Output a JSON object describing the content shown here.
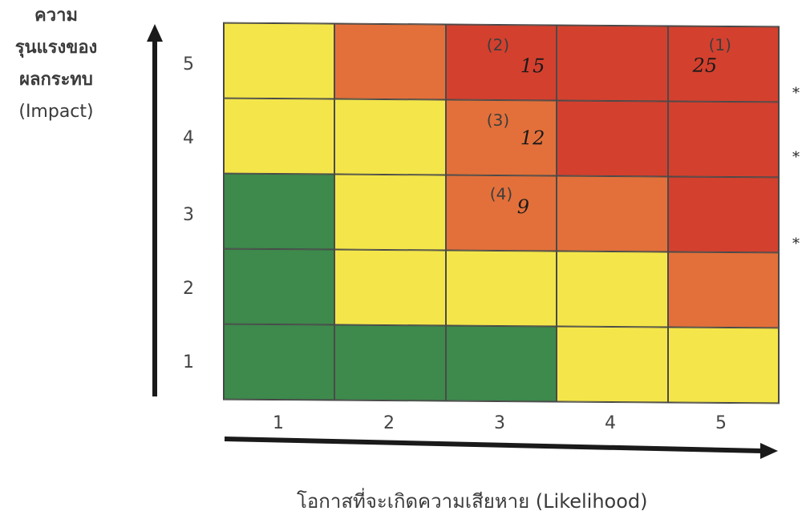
{
  "y_axis_label": {
    "line1": "ความ",
    "line2": "รุนแรงของ",
    "line3": "ผลกระทบ",
    "line4": "(Impact)"
  },
  "x_axis_label": "โอกาสที่จะเกิดความเสียหาย (Likelihood)",
  "y_ticks": [
    "5",
    "4",
    "3",
    "2",
    "1"
  ],
  "x_ticks": [
    "1",
    "2",
    "3",
    "4",
    "5"
  ],
  "colors": {
    "green": "#3d8a4c",
    "yellow": "#f4e64a",
    "orange": "#e3703a",
    "red": "#d4402e"
  },
  "matrix_rows": [
    {
      "impact": "5",
      "cells": [
        "yellow",
        "orange",
        "red",
        "red",
        "red"
      ]
    },
    {
      "impact": "4",
      "cells": [
        "yellow",
        "yellow",
        "orange",
        "red",
        "red"
      ]
    },
    {
      "impact": "3",
      "cells": [
        "green",
        "yellow",
        "orange",
        "orange",
        "red"
      ]
    },
    {
      "impact": "2",
      "cells": [
        "green",
        "yellow",
        "yellow",
        "yellow",
        "orange"
      ]
    },
    {
      "impact": "1",
      "cells": [
        "green",
        "green",
        "green",
        "yellow",
        "yellow"
      ]
    }
  ],
  "annotations": {
    "a1": {
      "label": "(1)",
      "handwritten": "25"
    },
    "a2": {
      "label": "(2)",
      "handwritten": "15"
    },
    "a3": {
      "label": "(3)",
      "handwritten": "12"
    },
    "a4": {
      "label": "(4)",
      "handwritten": "9"
    }
  },
  "margin_marks": [
    "*",
    "*",
    "*"
  ]
}
